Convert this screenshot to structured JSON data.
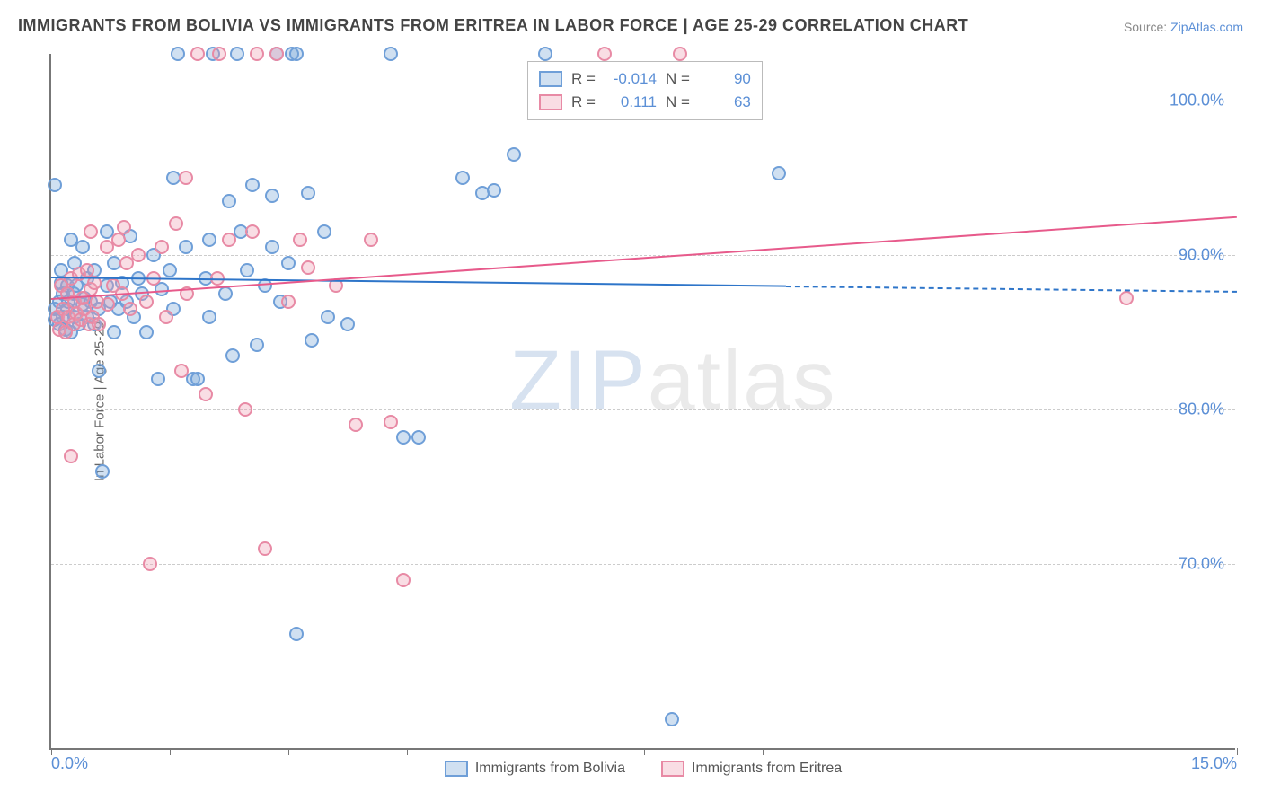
{
  "title": "IMMIGRANTS FROM BOLIVIA VS IMMIGRANTS FROM ERITREA IN LABOR FORCE | AGE 25-29 CORRELATION CHART",
  "source_label": "Source: ",
  "source_name": "ZipAtlas.com",
  "y_axis_title": "In Labor Force | Age 25-29",
  "watermark_a": "ZIP",
  "watermark_b": "atlas",
  "chart": {
    "type": "scatter",
    "background_color": "#ffffff",
    "axis_color": "#777777",
    "grid_color": "#cccccc",
    "grid_dash": "dashed",
    "xlim": [
      0.0,
      15.0
    ],
    "ylim": [
      58.0,
      103.0
    ],
    "yticks": [
      70.0,
      80.0,
      90.0,
      100.0
    ],
    "ytick_labels": [
      "70.0%",
      "80.0%",
      "90.0%",
      "100.0%"
    ],
    "xtick_positions": [
      0.0,
      1.5,
      3.0,
      4.5,
      6.0,
      7.5,
      9.0,
      15.0
    ],
    "xtick_labels_shown": {
      "0.0": "0.0%",
      "15.0": "15.0%"
    },
    "marker_radius": 8,
    "marker_stroke_width": 2,
    "title_fontsize": 18,
    "label_fontsize": 15,
    "tick_fontsize": 18,
    "tick_color": "#5b8fd6"
  },
  "series": [
    {
      "name": "Immigrants from Bolivia",
      "fill": "rgba(120,165,216,0.35)",
      "stroke": "#6f9fd8",
      "trend_color": "#2e75c9",
      "R": "-0.014",
      "N": "90",
      "trend": {
        "x0": 0.0,
        "y0": 88.6,
        "x1": 9.3,
        "y1": 88.0,
        "x1_ext": 15.0,
        "y1_ext": 87.7,
        "dashed_after": 9.3
      },
      "points": [
        [
          0.05,
          85.8
        ],
        [
          0.05,
          94.5
        ],
        [
          0.05,
          86.5
        ],
        [
          0.1,
          85.5
        ],
        [
          0.1,
          87.0
        ],
        [
          0.12,
          89.0
        ],
        [
          0.12,
          88.2
        ],
        [
          0.15,
          86.0
        ],
        [
          0.15,
          87.5
        ],
        [
          0.18,
          85.2
        ],
        [
          0.2,
          86.5
        ],
        [
          0.2,
          88.0
        ],
        [
          0.22,
          87.0
        ],
        [
          0.25,
          85.0
        ],
        [
          0.25,
          91.0
        ],
        [
          0.28,
          87.5
        ],
        [
          0.3,
          86.0
        ],
        [
          0.3,
          89.5
        ],
        [
          0.32,
          88.0
        ],
        [
          0.35,
          85.5
        ],
        [
          0.4,
          86.8
        ],
        [
          0.4,
          90.5
        ],
        [
          0.42,
          87.2
        ],
        [
          0.45,
          88.5
        ],
        [
          0.45,
          86.0
        ],
        [
          0.5,
          87.0
        ],
        [
          0.55,
          89.0
        ],
        [
          0.55,
          85.5
        ],
        [
          0.6,
          86.5
        ],
        [
          0.6,
          82.5
        ],
        [
          0.65,
          76.0
        ],
        [
          0.7,
          88.0
        ],
        [
          0.7,
          91.5
        ],
        [
          0.75,
          87.0
        ],
        [
          0.8,
          89.5
        ],
        [
          0.8,
          85.0
        ],
        [
          0.85,
          86.5
        ],
        [
          0.9,
          88.2
        ],
        [
          0.95,
          87.0
        ],
        [
          1.0,
          91.2
        ],
        [
          1.05,
          86.0
        ],
        [
          1.1,
          88.5
        ],
        [
          1.15,
          87.5
        ],
        [
          1.2,
          85.0
        ],
        [
          1.3,
          90.0
        ],
        [
          1.35,
          82.0
        ],
        [
          1.4,
          87.8
        ],
        [
          1.5,
          89.0
        ],
        [
          1.55,
          86.5
        ],
        [
          1.55,
          95.0
        ],
        [
          1.6,
          103.0
        ],
        [
          1.7,
          90.5
        ],
        [
          1.8,
          82.0
        ],
        [
          1.85,
          82.0
        ],
        [
          1.95,
          88.5
        ],
        [
          2.0,
          86.0
        ],
        [
          2.0,
          91.0
        ],
        [
          2.05,
          103.0
        ],
        [
          2.2,
          87.5
        ],
        [
          2.25,
          93.5
        ],
        [
          2.3,
          83.5
        ],
        [
          2.35,
          103.0
        ],
        [
          2.4,
          91.5
        ],
        [
          2.48,
          89.0
        ],
        [
          2.55,
          94.5
        ],
        [
          2.6,
          84.2
        ],
        [
          2.7,
          88.0
        ],
        [
          2.8,
          93.8
        ],
        [
          2.8,
          90.5
        ],
        [
          2.85,
          103.0
        ],
        [
          2.9,
          87.0
        ],
        [
          3.0,
          89.5
        ],
        [
          3.05,
          103.0
        ],
        [
          3.1,
          103.0
        ],
        [
          3.1,
          65.5
        ],
        [
          3.25,
          94.0
        ],
        [
          3.3,
          84.5
        ],
        [
          3.45,
          91.5
        ],
        [
          3.5,
          86.0
        ],
        [
          3.75,
          85.5
        ],
        [
          4.3,
          103.0
        ],
        [
          4.45,
          78.2
        ],
        [
          4.65,
          78.2
        ],
        [
          5.2,
          95.0
        ],
        [
          5.45,
          94.0
        ],
        [
          5.6,
          94.2
        ],
        [
          5.85,
          96.5
        ],
        [
          6.25,
          103.0
        ],
        [
          7.85,
          60.0
        ],
        [
          9.2,
          95.3
        ]
      ]
    },
    {
      "name": "Immigrants from Eritrea",
      "fill": "rgba(239,157,178,0.35)",
      "stroke": "#e88aa5",
      "trend_color": "#e75a8b",
      "R": "0.111",
      "N": "63",
      "trend": {
        "x0": 0.0,
        "y0": 87.2,
        "x1": 15.0,
        "y1": 92.5,
        "dashed_after": null
      },
      "points": [
        [
          0.08,
          86.0
        ],
        [
          0.1,
          85.2
        ],
        [
          0.12,
          88.0
        ],
        [
          0.15,
          86.5
        ],
        [
          0.18,
          85.0
        ],
        [
          0.2,
          87.5
        ],
        [
          0.22,
          86.0
        ],
        [
          0.25,
          88.5
        ],
        [
          0.25,
          77.0
        ],
        [
          0.28,
          85.5
        ],
        [
          0.3,
          87.0
        ],
        [
          0.32,
          86.2
        ],
        [
          0.35,
          88.8
        ],
        [
          0.38,
          85.8
        ],
        [
          0.4,
          87.2
        ],
        [
          0.42,
          86.5
        ],
        [
          0.45,
          89.0
        ],
        [
          0.48,
          85.5
        ],
        [
          0.5,
          87.8
        ],
        [
          0.5,
          91.5
        ],
        [
          0.52,
          86.0
        ],
        [
          0.55,
          88.2
        ],
        [
          0.58,
          87.0
        ],
        [
          0.6,
          85.5
        ],
        [
          0.7,
          90.5
        ],
        [
          0.72,
          86.8
        ],
        [
          0.78,
          88.0
        ],
        [
          0.85,
          91.0
        ],
        [
          0.9,
          87.5
        ],
        [
          0.92,
          91.8
        ],
        [
          0.95,
          89.5
        ],
        [
          1.0,
          86.5
        ],
        [
          1.1,
          90.0
        ],
        [
          1.2,
          87.0
        ],
        [
          1.25,
          70.0
        ],
        [
          1.3,
          88.5
        ],
        [
          1.4,
          90.5
        ],
        [
          1.45,
          86.0
        ],
        [
          1.58,
          92.0
        ],
        [
          1.65,
          82.5
        ],
        [
          1.7,
          95.0
        ],
        [
          1.72,
          87.5
        ],
        [
          1.85,
          103.0
        ],
        [
          1.95,
          81.0
        ],
        [
          2.1,
          88.5
        ],
        [
          2.12,
          103.0
        ],
        [
          2.25,
          91.0
        ],
        [
          2.45,
          80.0
        ],
        [
          2.55,
          91.5
        ],
        [
          2.6,
          103.0
        ],
        [
          2.7,
          71.0
        ],
        [
          2.85,
          103.0
        ],
        [
          3.0,
          87.0
        ],
        [
          3.15,
          91.0
        ],
        [
          3.25,
          89.2
        ],
        [
          3.6,
          88.0
        ],
        [
          3.85,
          79.0
        ],
        [
          4.05,
          91.0
        ],
        [
          4.3,
          79.2
        ],
        [
          4.45,
          69.0
        ],
        [
          7.0,
          103.0
        ],
        [
          7.95,
          103.0
        ],
        [
          13.6,
          87.2
        ]
      ]
    }
  ],
  "legend_top": {
    "r_label": "R =",
    "n_label": "N ="
  }
}
